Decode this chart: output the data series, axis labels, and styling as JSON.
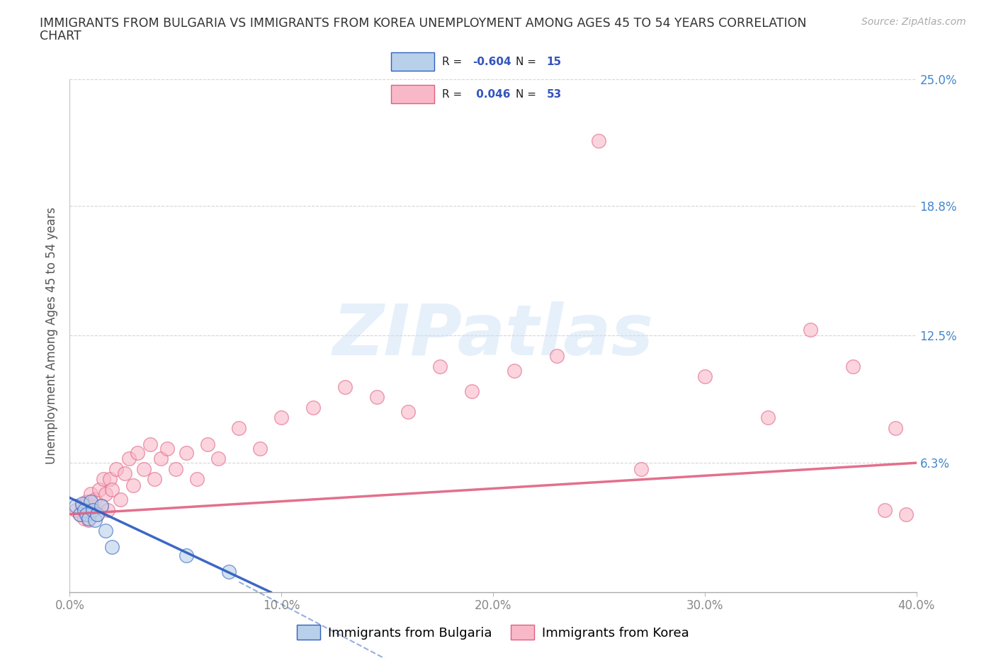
{
  "title_line1": "IMMIGRANTS FROM BULGARIA VS IMMIGRANTS FROM KOREA UNEMPLOYMENT AMONG AGES 45 TO 54 YEARS CORRELATION",
  "title_line2": "CHART",
  "source": "Source: ZipAtlas.com",
  "ylabel": "Unemployment Among Ages 45 to 54 years",
  "xlim": [
    0.0,
    0.4
  ],
  "ylim": [
    0.0,
    0.25
  ],
  "yticks": [
    0.0,
    0.063,
    0.125,
    0.188,
    0.25
  ],
  "ytick_labels": [
    "",
    "6.3%",
    "12.5%",
    "18.8%",
    "25.0%"
  ],
  "xticks": [
    0.0,
    0.1,
    0.2,
    0.3,
    0.4
  ],
  "xtick_labels": [
    "0.0%",
    "10.0%",
    "20.0%",
    "30.0%",
    "40.0%"
  ],
  "bulgaria_scatter_color": "#b8d0ea",
  "korea_scatter_color": "#f9b8c8",
  "bulgaria_line_color": "#3060c0",
  "korea_line_color": "#e06080",
  "background_color": "#ffffff",
  "grid_color": "#cccccc",
  "watermark_color": "#c8dff5",
  "watermark_text": "ZIPatlas",
  "legend_value_color": "#3355bb",
  "title_color": "#333333",
  "source_color": "#aaaaaa",
  "tick_color_y": "#4488cc",
  "tick_color_x": "#888888",
  "bulgaria_R": -0.604,
  "bulgaria_N": 15,
  "korea_R": 0.046,
  "korea_N": 53,
  "legend_entry1": "Immigrants from Bulgaria",
  "legend_entry2": "Immigrants from Korea",
  "bulgaria_x": [
    0.003,
    0.005,
    0.006,
    0.007,
    0.008,
    0.009,
    0.01,
    0.011,
    0.012,
    0.013,
    0.015,
    0.017,
    0.02,
    0.055,
    0.075
  ],
  "bulgaria_y": [
    0.042,
    0.038,
    0.043,
    0.04,
    0.038,
    0.036,
    0.044,
    0.04,
    0.035,
    0.038,
    0.042,
    0.03,
    0.022,
    0.018,
    0.01
  ],
  "korea_x": [
    0.003,
    0.005,
    0.006,
    0.007,
    0.008,
    0.009,
    0.01,
    0.011,
    0.012,
    0.013,
    0.014,
    0.015,
    0.016,
    0.017,
    0.018,
    0.019,
    0.02,
    0.022,
    0.024,
    0.026,
    0.028,
    0.03,
    0.032,
    0.035,
    0.038,
    0.04,
    0.043,
    0.046,
    0.05,
    0.055,
    0.06,
    0.065,
    0.07,
    0.08,
    0.09,
    0.1,
    0.115,
    0.13,
    0.145,
    0.16,
    0.175,
    0.19,
    0.21,
    0.23,
    0.25,
    0.27,
    0.3,
    0.33,
    0.35,
    0.37,
    0.385,
    0.39,
    0.395
  ],
  "korea_y": [
    0.04,
    0.038,
    0.042,
    0.036,
    0.044,
    0.035,
    0.048,
    0.04,
    0.045,
    0.038,
    0.05,
    0.042,
    0.055,
    0.048,
    0.04,
    0.055,
    0.05,
    0.06,
    0.045,
    0.058,
    0.065,
    0.052,
    0.068,
    0.06,
    0.072,
    0.055,
    0.065,
    0.07,
    0.06,
    0.068,
    0.055,
    0.072,
    0.065,
    0.08,
    0.07,
    0.085,
    0.09,
    0.1,
    0.095,
    0.088,
    0.11,
    0.098,
    0.108,
    0.115,
    0.22,
    0.06,
    0.105,
    0.085,
    0.128,
    0.11,
    0.04,
    0.08,
    0.038
  ],
  "scatter_size": 200,
  "scatter_alpha": 0.6,
  "scatter_lw": 1.0
}
